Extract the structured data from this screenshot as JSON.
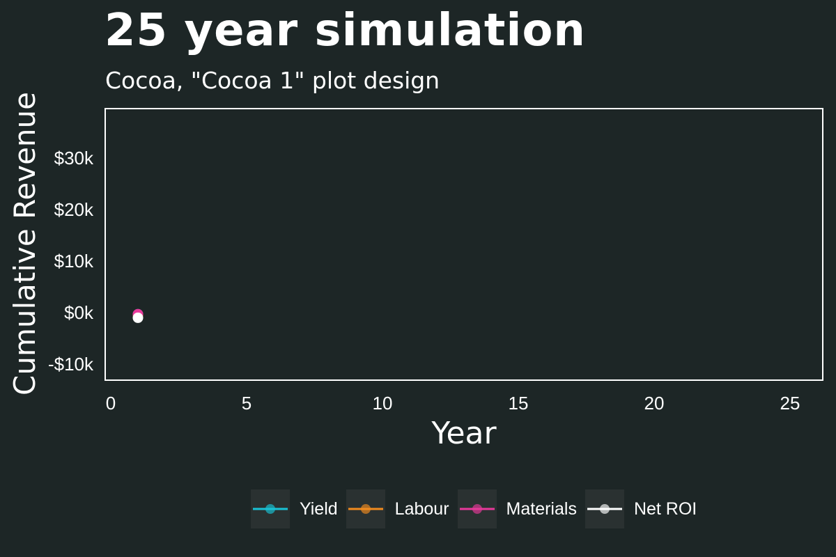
{
  "header": {
    "title": "25 year simulation",
    "subtitle": "Cocoa, \"Cocoa 1\" plot design"
  },
  "colors": {
    "background": "#1d2626",
    "panel_border": "#ffffff",
    "legend_key_bg": "#2a3131",
    "Yield": "#19c3d6",
    "Labour": "#f28c1e",
    "Materials": "#e8399a",
    "Net ROI": "#ffffff"
  },
  "chart_data": {
    "type": "line",
    "title": "25 year simulation",
    "subtitle": "Cocoa, \"Cocoa 1\" plot design",
    "xlabel": "Year",
    "ylabel": "Cumulative Revenue",
    "xlim": [
      0,
      25
    ],
    "ylim": [
      -10000,
      35000
    ],
    "x_ticks": [
      {
        "value": 0,
        "label": "0"
      },
      {
        "value": 5,
        "label": "5"
      },
      {
        "value": 10,
        "label": "10"
      },
      {
        "value": 15,
        "label": "15"
      },
      {
        "value": 20,
        "label": "20"
      },
      {
        "value": 25,
        "label": "25"
      }
    ],
    "y_ticks": [
      {
        "value": -10000,
        "label": "-$10k"
      },
      {
        "value": 0,
        "label": "$0k"
      },
      {
        "value": 10000,
        "label": "$10k"
      },
      {
        "value": 20000,
        "label": "$20k"
      },
      {
        "value": 30000,
        "label": "$30k"
      }
    ],
    "grid": false,
    "legend_position": "bottom",
    "series": [
      {
        "name": "Yield",
        "x": [
          1
        ],
        "y": [
          -300
        ]
      },
      {
        "name": "Labour",
        "x": [
          1
        ],
        "y": [
          -450
        ]
      },
      {
        "name": "Materials",
        "x": [
          1
        ],
        "y": [
          -300
        ]
      },
      {
        "name": "Net ROI",
        "x": [
          1
        ],
        "y": [
          -1000
        ]
      }
    ]
  },
  "legend": {
    "items": [
      {
        "label": "Yield"
      },
      {
        "label": "Labour"
      },
      {
        "label": "Materials"
      },
      {
        "label": "Net ROI"
      }
    ]
  }
}
